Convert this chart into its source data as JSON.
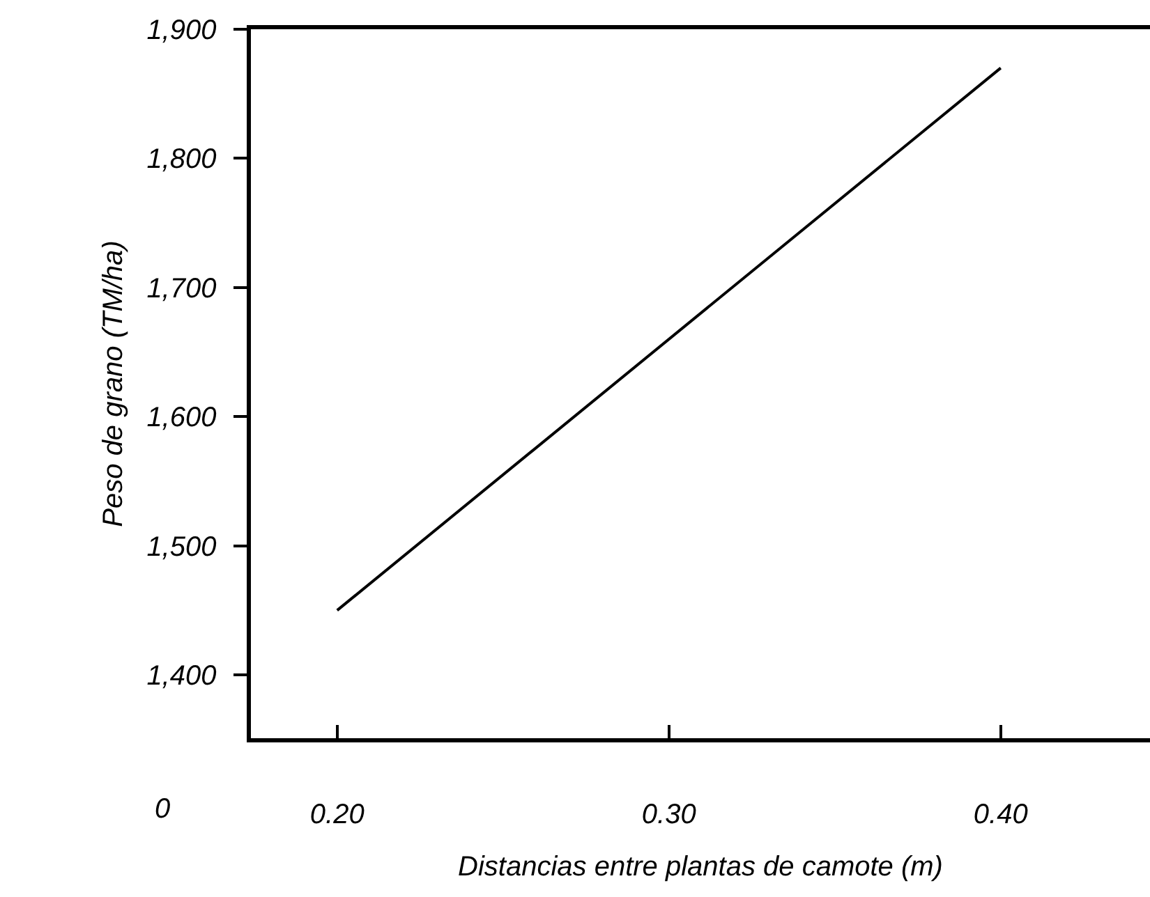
{
  "chart_data": {
    "type": "line",
    "xlabel": "Distancias entre plantas de camote (m)",
    "ylabel": "Peso de grano (TM/ha)",
    "x": [
      0.2,
      0.4
    ],
    "series": [
      {
        "color": "#000000",
        "values": [
          1450,
          1870
        ]
      }
    ],
    "xlim": [
      0.174,
      0.445
    ],
    "xticks": [
      {
        "value": 0.2,
        "label": "0.20"
      },
      {
        "value": 0.3,
        "label": "0.30"
      },
      {
        "value": 0.4,
        "label": "0.40"
      }
    ],
    "ylim": [
      1351,
      1900
    ],
    "yticks": [
      {
        "value": 1400,
        "label": "1,400"
      },
      {
        "value": 1500,
        "label": "1,500"
      },
      {
        "value": 1600,
        "label": "1,600"
      },
      {
        "value": 1700,
        "label": "1,700"
      },
      {
        "value": 1800,
        "label": "1,800"
      },
      {
        "value": 1900,
        "label": "1,900"
      }
    ],
    "annotations": [
      "0"
    ],
    "marker": "none",
    "line_style": "solid"
  }
}
